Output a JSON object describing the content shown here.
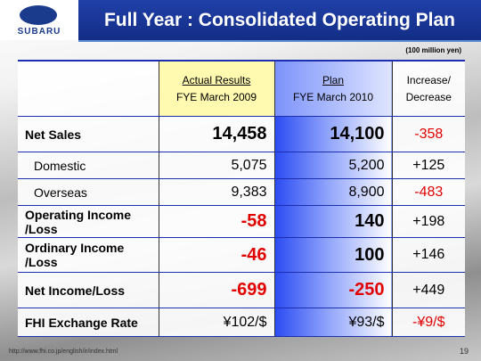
{
  "header": {
    "logo": "SUBARU",
    "title": "Full Year : Consolidated Operating Plan"
  },
  "unit": "(100 million yen)",
  "table": {
    "columns": [
      {
        "title": "Actual Results",
        "subtitle": "FYE March 2009"
      },
      {
        "title": "Plan",
        "subtitle": "FYE March 2010"
      },
      {
        "title": "Increase/\nDecrease"
      }
    ],
    "rows": [
      [
        "Net Sales",
        "14,458",
        "14,100",
        "-358"
      ],
      [
        "Domestic",
        "5,075",
        "5,200",
        "+125"
      ],
      [
        "Overseas",
        "9,383",
        "8,900",
        "-483"
      ],
      [
        "Operating Income\n/Loss",
        "-58",
        "140",
        "+198"
      ],
      [
        "Ordinary Income\n/Loss",
        "-46",
        "100",
        "+146"
      ],
      [
        "Net Income/Loss",
        "-699",
        "-250",
        "+449"
      ],
      [
        "FHI Exchange Rate",
        "¥102/$",
        "¥93/$",
        "-¥9/$"
      ]
    ]
  },
  "footer": {
    "url": "http://www.fhi.co.jp/english/ir/index.html",
    "page": "19"
  }
}
